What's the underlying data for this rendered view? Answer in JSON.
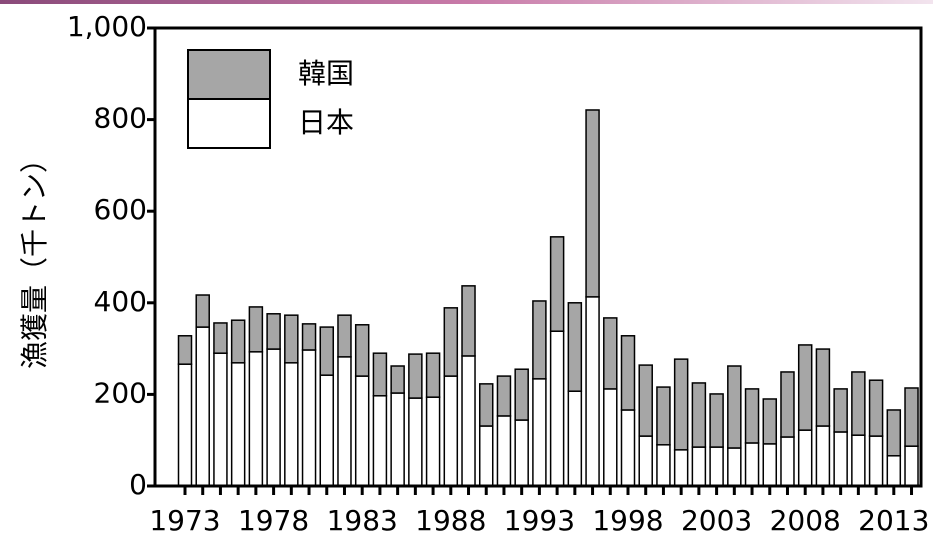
{
  "chart_data": {
    "type": "bar",
    "stacked": true,
    "ylabel": "漁獲量（千トン）",
    "categories": [
      "1973",
      null,
      null,
      null,
      null,
      "1978",
      null,
      null,
      null,
      null,
      "1983",
      null,
      null,
      null,
      null,
      "1988",
      null,
      null,
      null,
      null,
      "1993",
      null,
      null,
      null,
      null,
      "1998",
      null,
      null,
      null,
      null,
      "2003",
      null,
      null,
      null,
      null,
      "2008",
      null,
      null,
      null,
      null,
      "2013",
      null
    ],
    "series": [
      {
        "name": "日本",
        "color": "#ffffff",
        "values": [
          266,
          347,
          290,
          269,
          293,
          299,
          269,
          297,
          242,
          282,
          240,
          197,
          203,
          192,
          194,
          240,
          284,
          131,
          153,
          144,
          234,
          338,
          207,
          413,
          212,
          166,
          109,
          90,
          79,
          85,
          85,
          83,
          94,
          92,
          107,
          122,
          131,
          118,
          111,
          109,
          66,
          87
        ]
      },
      {
        "name": "韓国",
        "color": "#a6a6a6",
        "values": [
          62,
          70,
          66,
          93,
          98,
          77,
          104,
          57,
          105,
          91,
          112,
          93,
          59,
          96,
          96,
          149,
          153,
          92,
          87,
          111,
          170,
          206,
          193,
          408,
          155,
          162,
          155,
          126,
          198,
          140,
          116,
          179,
          118,
          98,
          142,
          186,
          168,
          94,
          138,
          122,
          100,
          127
        ]
      }
    ],
    "ylim": [
      0,
      1000
    ],
    "yticks": [
      0,
      200,
      400,
      600,
      800,
      {
        "value": 1000,
        "label": "1,000"
      }
    ]
  }
}
